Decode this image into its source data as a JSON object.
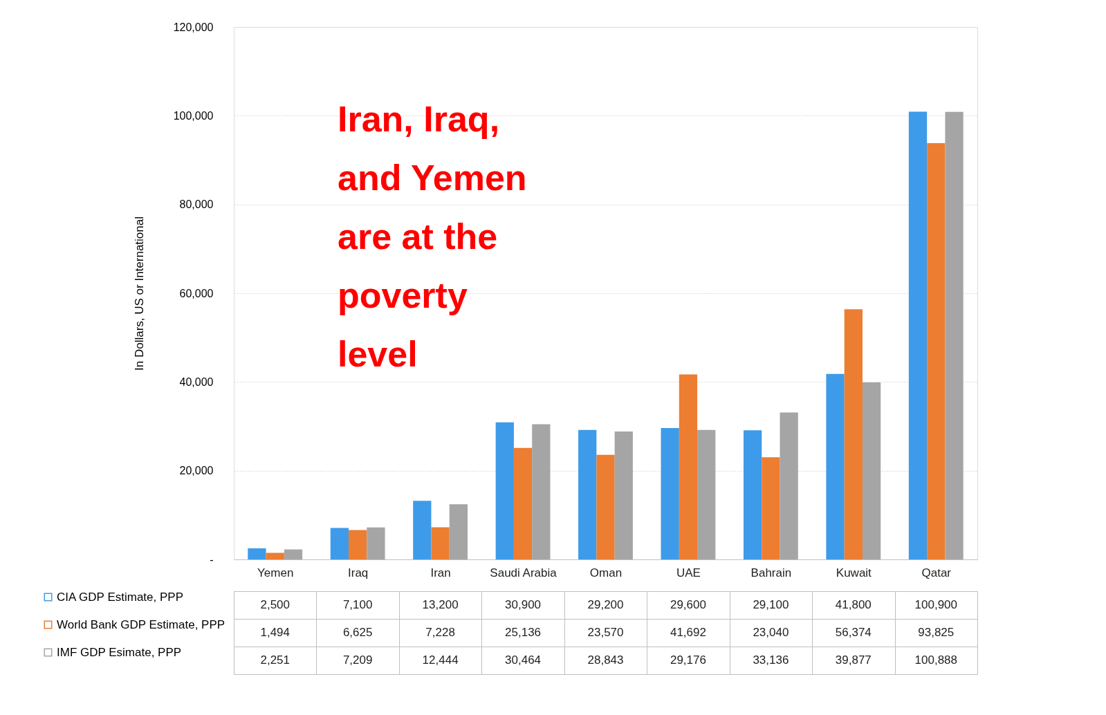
{
  "chart_data": {
    "type": "bar",
    "ylabel": "In Dollars, US or International",
    "categories": [
      "Yemen",
      "Iraq",
      "Iran",
      "Saudi Arabia",
      "Oman",
      "UAE",
      "Bahrain",
      "Kuwait",
      "Qatar"
    ],
    "series": [
      {
        "name": "CIA GDP Estimate, PPP",
        "color": "#3d9be9",
        "values": [
          2500,
          7100,
          13200,
          30900,
          29200,
          29600,
          29100,
          41800,
          100900
        ],
        "value_labels": [
          "2,500",
          "7,100",
          "13,200",
          "30,900",
          "29,200",
          "29,600",
          "29,100",
          "41,800",
          "100,900"
        ]
      },
      {
        "name": "World Bank GDP Estimate, PPP",
        "color": "#ed7d31",
        "values": [
          1494,
          6625,
          7228,
          25136,
          23570,
          41692,
          23040,
          56374,
          93825
        ],
        "value_labels": [
          "1,494",
          "6,625",
          "7,228",
          "25,136",
          "23,570",
          "41,692",
          "23,040",
          "56,374",
          "93,825"
        ]
      },
      {
        "name": "IMF GDP Esimate, PPP",
        "color": "#a5a5a5",
        "values": [
          2251,
          7209,
          12444,
          30464,
          28843,
          29176,
          33136,
          39877,
          100888
        ],
        "value_labels": [
          "2,251",
          "7,209",
          "12,444",
          "30,464",
          "28,843",
          "29,176",
          "33,136",
          "39,877",
          "100,888"
        ]
      }
    ],
    "ylim": [
      0,
      120000
    ],
    "yticks": [
      {
        "value": 0,
        "label": "-"
      },
      {
        "value": 20000,
        "label": "20,000"
      },
      {
        "value": 40000,
        "label": "40,000"
      },
      {
        "value": 60000,
        "label": "60,000"
      },
      {
        "value": 80000,
        "label": "80,000"
      },
      {
        "value": 100000,
        "label": "100,000"
      },
      {
        "value": 120000,
        "label": "120,000"
      }
    ],
    "grid": "y",
    "legend": "bottom",
    "annotations": [
      "Iran, Iraq, and Yemen are at the poverty level"
    ]
  }
}
